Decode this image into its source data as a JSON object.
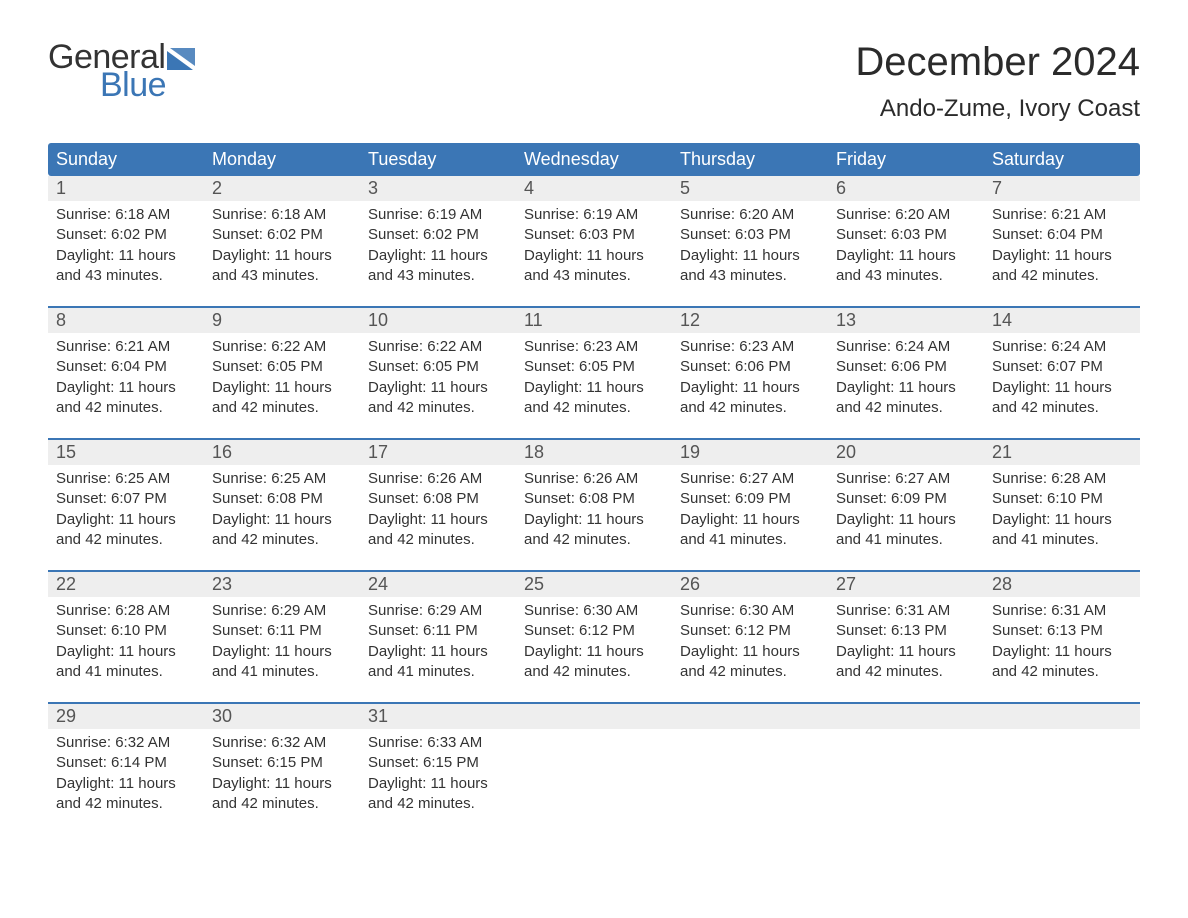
{
  "brand": {
    "word1": "General",
    "word2": "Blue",
    "word1_color": "#333333",
    "word2_color": "#3b76b5",
    "flag_color": "#3b76b5"
  },
  "title": "December 2024",
  "location": "Ando-Zume, Ivory Coast",
  "colors": {
    "header_bg": "#3b76b5",
    "header_text": "#ffffff",
    "daynum_bg": "#eeeeee",
    "daynum_text": "#555555",
    "body_text": "#333333",
    "week_border": "#3b76b5",
    "page_bg": "#ffffff"
  },
  "typography": {
    "title_fontsize": 40,
    "location_fontsize": 24,
    "header_fontsize": 18,
    "daynum_fontsize": 18,
    "body_fontsize": 15
  },
  "day_names": [
    "Sunday",
    "Monday",
    "Tuesday",
    "Wednesday",
    "Thursday",
    "Friday",
    "Saturday"
  ],
  "weeks": [
    [
      {
        "n": "1",
        "sunrise": "Sunrise: 6:18 AM",
        "sunset": "Sunset: 6:02 PM",
        "d1": "Daylight: 11 hours",
        "d2": "and 43 minutes."
      },
      {
        "n": "2",
        "sunrise": "Sunrise: 6:18 AM",
        "sunset": "Sunset: 6:02 PM",
        "d1": "Daylight: 11 hours",
        "d2": "and 43 minutes."
      },
      {
        "n": "3",
        "sunrise": "Sunrise: 6:19 AM",
        "sunset": "Sunset: 6:02 PM",
        "d1": "Daylight: 11 hours",
        "d2": "and 43 minutes."
      },
      {
        "n": "4",
        "sunrise": "Sunrise: 6:19 AM",
        "sunset": "Sunset: 6:03 PM",
        "d1": "Daylight: 11 hours",
        "d2": "and 43 minutes."
      },
      {
        "n": "5",
        "sunrise": "Sunrise: 6:20 AM",
        "sunset": "Sunset: 6:03 PM",
        "d1": "Daylight: 11 hours",
        "d2": "and 43 minutes."
      },
      {
        "n": "6",
        "sunrise": "Sunrise: 6:20 AM",
        "sunset": "Sunset: 6:03 PM",
        "d1": "Daylight: 11 hours",
        "d2": "and 43 minutes."
      },
      {
        "n": "7",
        "sunrise": "Sunrise: 6:21 AM",
        "sunset": "Sunset: 6:04 PM",
        "d1": "Daylight: 11 hours",
        "d2": "and 42 minutes."
      }
    ],
    [
      {
        "n": "8",
        "sunrise": "Sunrise: 6:21 AM",
        "sunset": "Sunset: 6:04 PM",
        "d1": "Daylight: 11 hours",
        "d2": "and 42 minutes."
      },
      {
        "n": "9",
        "sunrise": "Sunrise: 6:22 AM",
        "sunset": "Sunset: 6:05 PM",
        "d1": "Daylight: 11 hours",
        "d2": "and 42 minutes."
      },
      {
        "n": "10",
        "sunrise": "Sunrise: 6:22 AM",
        "sunset": "Sunset: 6:05 PM",
        "d1": "Daylight: 11 hours",
        "d2": "and 42 minutes."
      },
      {
        "n": "11",
        "sunrise": "Sunrise: 6:23 AM",
        "sunset": "Sunset: 6:05 PM",
        "d1": "Daylight: 11 hours",
        "d2": "and 42 minutes."
      },
      {
        "n": "12",
        "sunrise": "Sunrise: 6:23 AM",
        "sunset": "Sunset: 6:06 PM",
        "d1": "Daylight: 11 hours",
        "d2": "and 42 minutes."
      },
      {
        "n": "13",
        "sunrise": "Sunrise: 6:24 AM",
        "sunset": "Sunset: 6:06 PM",
        "d1": "Daylight: 11 hours",
        "d2": "and 42 minutes."
      },
      {
        "n": "14",
        "sunrise": "Sunrise: 6:24 AM",
        "sunset": "Sunset: 6:07 PM",
        "d1": "Daylight: 11 hours",
        "d2": "and 42 minutes."
      }
    ],
    [
      {
        "n": "15",
        "sunrise": "Sunrise: 6:25 AM",
        "sunset": "Sunset: 6:07 PM",
        "d1": "Daylight: 11 hours",
        "d2": "and 42 minutes."
      },
      {
        "n": "16",
        "sunrise": "Sunrise: 6:25 AM",
        "sunset": "Sunset: 6:08 PM",
        "d1": "Daylight: 11 hours",
        "d2": "and 42 minutes."
      },
      {
        "n": "17",
        "sunrise": "Sunrise: 6:26 AM",
        "sunset": "Sunset: 6:08 PM",
        "d1": "Daylight: 11 hours",
        "d2": "and 42 minutes."
      },
      {
        "n": "18",
        "sunrise": "Sunrise: 6:26 AM",
        "sunset": "Sunset: 6:08 PM",
        "d1": "Daylight: 11 hours",
        "d2": "and 42 minutes."
      },
      {
        "n": "19",
        "sunrise": "Sunrise: 6:27 AM",
        "sunset": "Sunset: 6:09 PM",
        "d1": "Daylight: 11 hours",
        "d2": "and 41 minutes."
      },
      {
        "n": "20",
        "sunrise": "Sunrise: 6:27 AM",
        "sunset": "Sunset: 6:09 PM",
        "d1": "Daylight: 11 hours",
        "d2": "and 41 minutes."
      },
      {
        "n": "21",
        "sunrise": "Sunrise: 6:28 AM",
        "sunset": "Sunset: 6:10 PM",
        "d1": "Daylight: 11 hours",
        "d2": "and 41 minutes."
      }
    ],
    [
      {
        "n": "22",
        "sunrise": "Sunrise: 6:28 AM",
        "sunset": "Sunset: 6:10 PM",
        "d1": "Daylight: 11 hours",
        "d2": "and 41 minutes."
      },
      {
        "n": "23",
        "sunrise": "Sunrise: 6:29 AM",
        "sunset": "Sunset: 6:11 PM",
        "d1": "Daylight: 11 hours",
        "d2": "and 41 minutes."
      },
      {
        "n": "24",
        "sunrise": "Sunrise: 6:29 AM",
        "sunset": "Sunset: 6:11 PM",
        "d1": "Daylight: 11 hours",
        "d2": "and 41 minutes."
      },
      {
        "n": "25",
        "sunrise": "Sunrise: 6:30 AM",
        "sunset": "Sunset: 6:12 PM",
        "d1": "Daylight: 11 hours",
        "d2": "and 42 minutes."
      },
      {
        "n": "26",
        "sunrise": "Sunrise: 6:30 AM",
        "sunset": "Sunset: 6:12 PM",
        "d1": "Daylight: 11 hours",
        "d2": "and 42 minutes."
      },
      {
        "n": "27",
        "sunrise": "Sunrise: 6:31 AM",
        "sunset": "Sunset: 6:13 PM",
        "d1": "Daylight: 11 hours",
        "d2": "and 42 minutes."
      },
      {
        "n": "28",
        "sunrise": "Sunrise: 6:31 AM",
        "sunset": "Sunset: 6:13 PM",
        "d1": "Daylight: 11 hours",
        "d2": "and 42 minutes."
      }
    ],
    [
      {
        "n": "29",
        "sunrise": "Sunrise: 6:32 AM",
        "sunset": "Sunset: 6:14 PM",
        "d1": "Daylight: 11 hours",
        "d2": "and 42 minutes."
      },
      {
        "n": "30",
        "sunrise": "Sunrise: 6:32 AM",
        "sunset": "Sunset: 6:15 PM",
        "d1": "Daylight: 11 hours",
        "d2": "and 42 minutes."
      },
      {
        "n": "31",
        "sunrise": "Sunrise: 6:33 AM",
        "sunset": "Sunset: 6:15 PM",
        "d1": "Daylight: 11 hours",
        "d2": "and 42 minutes."
      },
      {
        "empty": true
      },
      {
        "empty": true
      },
      {
        "empty": true
      },
      {
        "empty": true
      }
    ]
  ]
}
